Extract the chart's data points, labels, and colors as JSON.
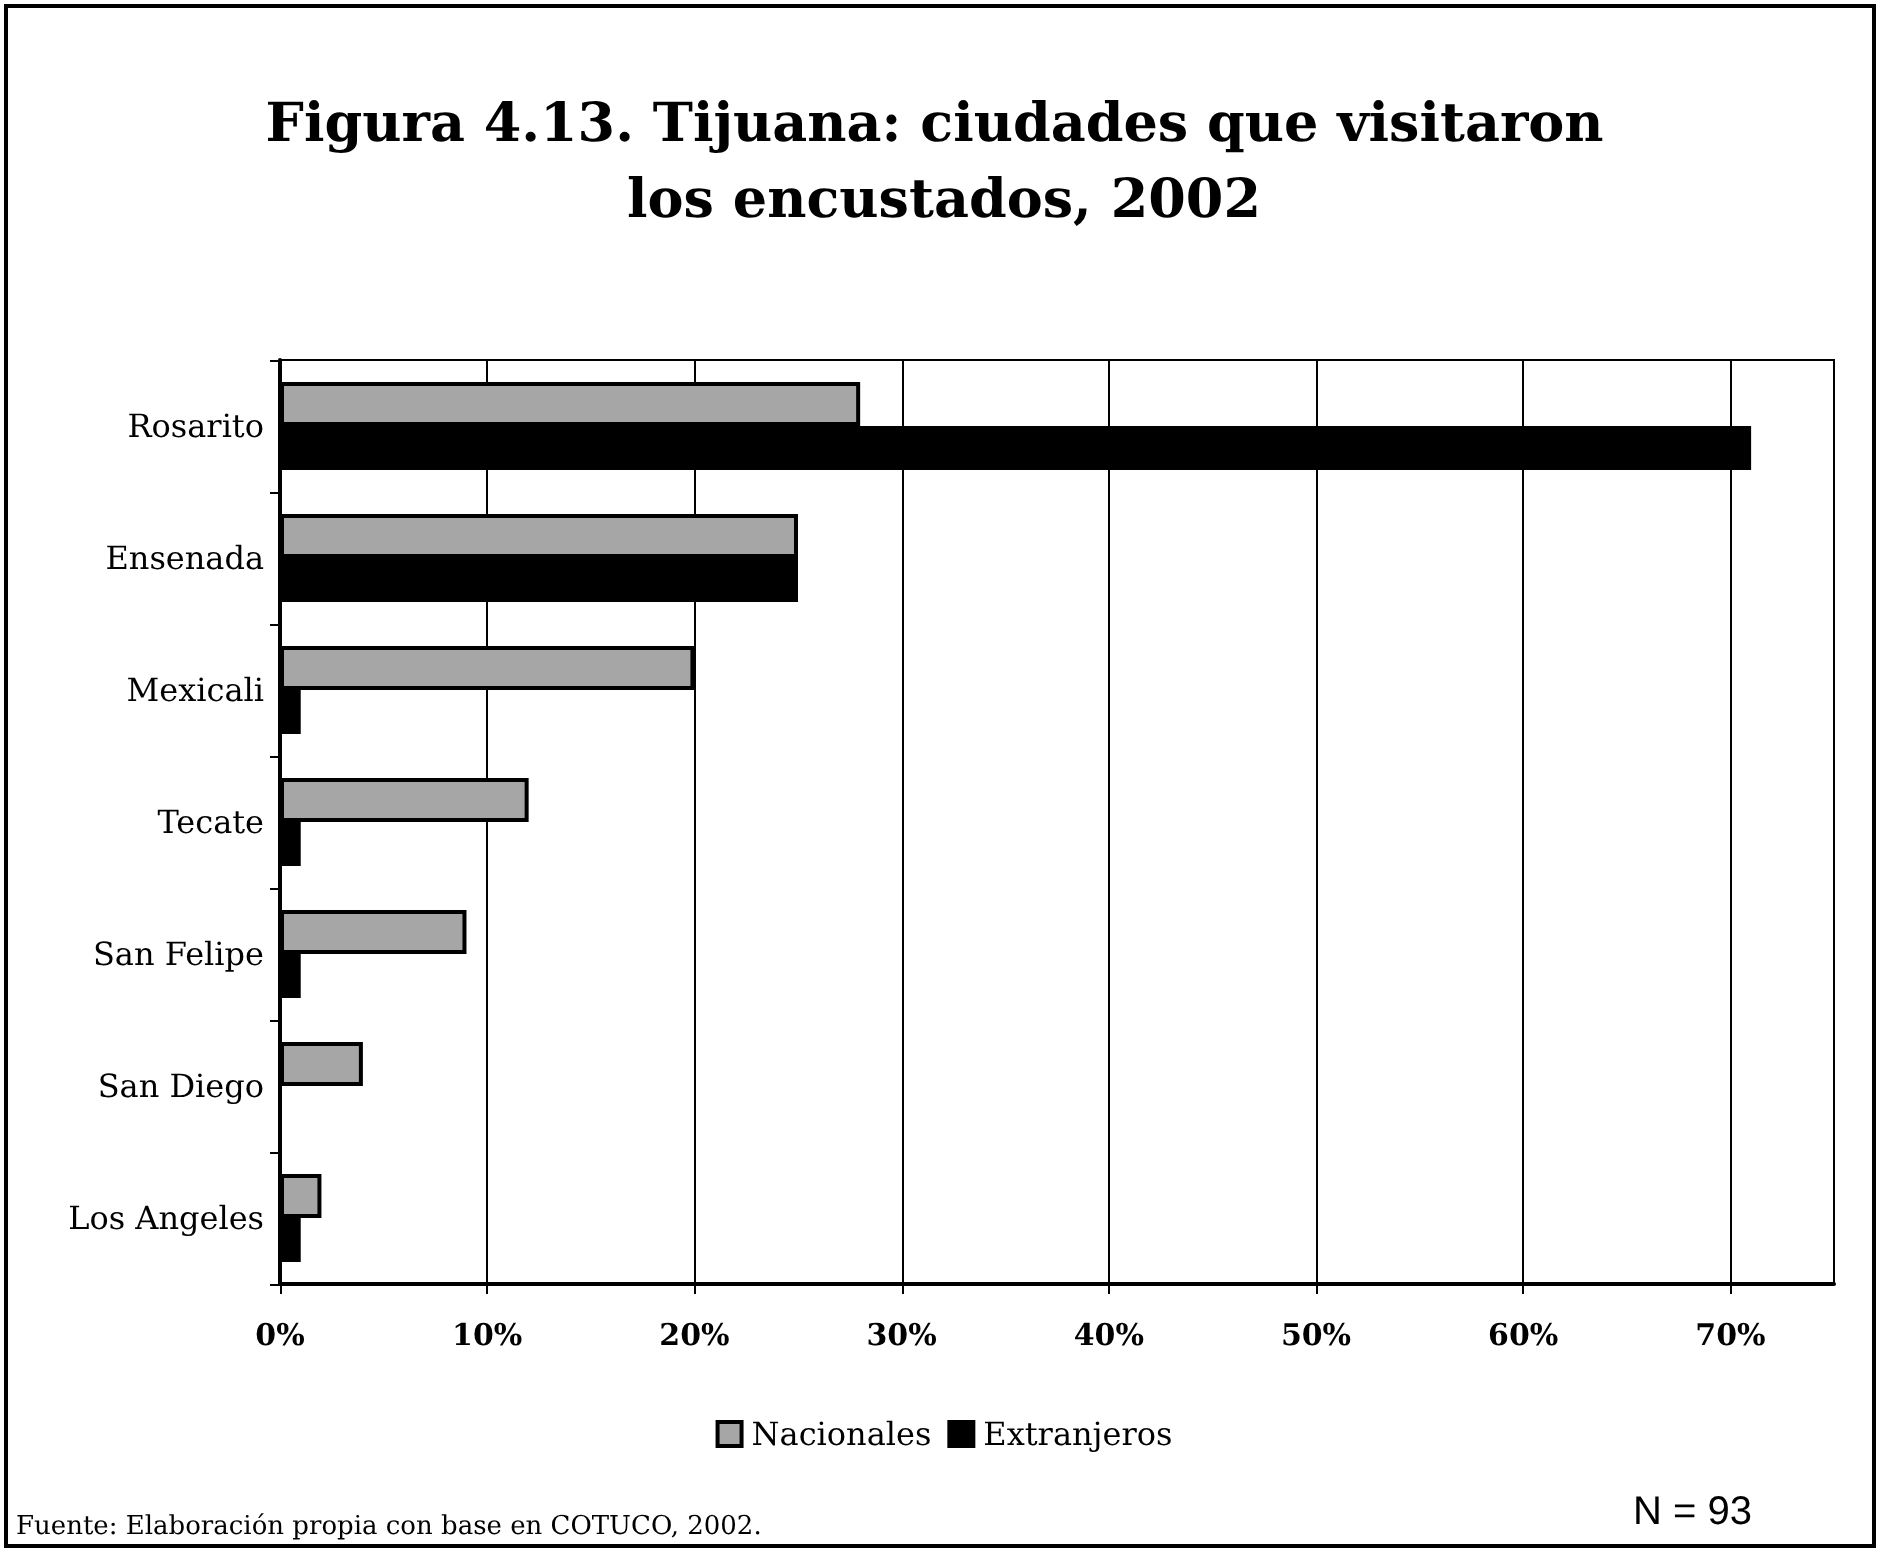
{
  "chart_data": {
    "type": "bar",
    "orientation": "horizontal",
    "title": "Figura 4.13. Tijuana: ciudades que visitaron los encustados, 2002",
    "categories": [
      "Rosarito",
      "Ensenada",
      "Mexicali",
      "Tecate",
      "San Felipe",
      "San Diego",
      "Los Angeles"
    ],
    "series": [
      {
        "name": "Nacionales",
        "color": "#a6a6a6",
        "values": [
          28,
          25,
          20,
          12,
          9,
          4,
          2
        ]
      },
      {
        "name": "Extranjeros",
        "color": "#000000",
        "values": [
          71,
          25,
          1,
          1,
          1,
          0,
          1
        ]
      }
    ],
    "xlim": [
      0,
      75
    ],
    "xticks": [
      {
        "value": 0,
        "label": "0%"
      },
      {
        "value": 10,
        "label": "10%"
      },
      {
        "value": 20,
        "label": "20%"
      },
      {
        "value": 30,
        "label": "30%"
      },
      {
        "value": 40,
        "label": "40%"
      },
      {
        "value": 50,
        "label": "50%"
      },
      {
        "value": 60,
        "label": "60%"
      },
      {
        "value": 70,
        "label": "70%"
      }
    ],
    "grid": "x",
    "legend": "bottom",
    "annotations": [
      "Fuente: Elaboración propia con base en COTUCO, 2002.",
      "N = 93"
    ]
  }
}
